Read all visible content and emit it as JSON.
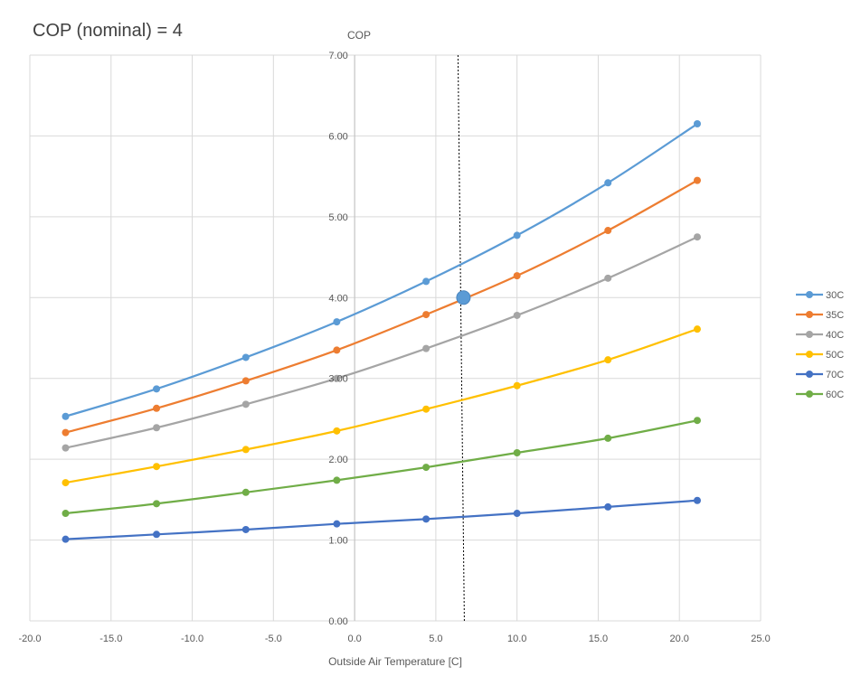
{
  "chart_data": {
    "type": "line",
    "title": "COP (nominal) = 4",
    "xlabel": "Outside Air Temperature  [C]",
    "ylabel": "COP",
    "xlim": [
      -20,
      25
    ],
    "ylim": [
      0,
      7
    ],
    "xticks": [
      "-20.0",
      "-15.0",
      "-10.0",
      "-5.0",
      "0.0",
      "5.0",
      "10.0",
      "15.0",
      "20.0",
      "25.0"
    ],
    "yticks": [
      "0.00",
      "1.00",
      "2.00",
      "3.00",
      "4.00",
      "5.00",
      "6.00",
      "7.00"
    ],
    "x": [
      -17.8,
      -12.2,
      -6.7,
      -1.1,
      4.4,
      10.0,
      15.6,
      21.1
    ],
    "grid": true,
    "legend_position": "right",
    "series": [
      {
        "name": "30C",
        "color": "#5B9BD5",
        "values": [
          2.53,
          2.87,
          3.26,
          3.7,
          4.2,
          4.77,
          5.42,
          6.15
        ]
      },
      {
        "name": "35C",
        "color": "#ED7D31",
        "values": [
          2.33,
          2.63,
          2.97,
          3.35,
          3.79,
          4.27,
          4.83,
          5.45
        ]
      },
      {
        "name": "40C",
        "color": "#A5A5A5",
        "values": [
          2.14,
          2.39,
          2.68,
          3.0,
          3.37,
          3.78,
          4.24,
          4.75
        ]
      },
      {
        "name": "50C",
        "color": "#FFC000",
        "values": [
          1.71,
          1.91,
          2.12,
          2.35,
          2.62,
          2.91,
          3.23,
          3.61
        ]
      },
      {
        "name": "70C",
        "color": "#4472C4",
        "values": [
          1.01,
          1.07,
          1.13,
          1.2,
          1.26,
          1.33,
          1.41,
          1.49
        ]
      },
      {
        "name": "60C",
        "color": "#70AD47",
        "values": [
          1.33,
          1.45,
          1.59,
          1.74,
          1.9,
          2.08,
          2.26,
          2.48
        ]
      }
    ],
    "annotations": {
      "vertical_line_x": 6.7,
      "highlight_point": {
        "x": 6.7,
        "y": 4.0,
        "color": "#5B9BD5"
      }
    }
  }
}
